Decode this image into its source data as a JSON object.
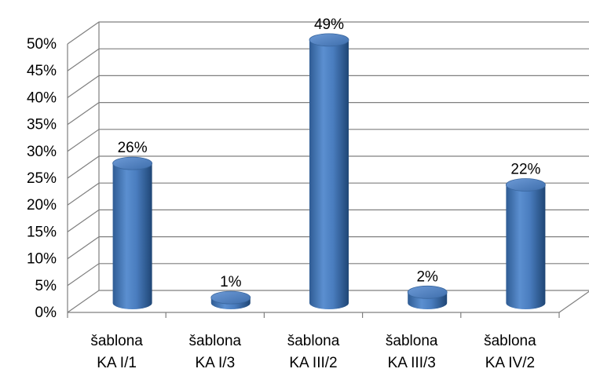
{
  "chart_data": {
    "type": "bar",
    "categories": [
      [
        "šablona",
        "KA I/1"
      ],
      [
        "šablona",
        "KA I/3"
      ],
      [
        "šablona",
        "KA III/2"
      ],
      [
        "šablona",
        "KA III/3"
      ],
      [
        "šablona",
        "KA IV/2"
      ]
    ],
    "values": [
      26,
      1,
      49,
      2,
      22
    ],
    "value_labels": [
      "26%",
      "1%",
      "49%",
      "2%",
      "22%"
    ],
    "ylim": [
      0,
      50
    ],
    "yticks": [
      0,
      5,
      10,
      15,
      20,
      25,
      30,
      35,
      40,
      45,
      50
    ],
    "ytick_labels": [
      "0%",
      "5%",
      "10%",
      "15%",
      "20%",
      "25%",
      "30%",
      "35%",
      "40%",
      "45%",
      "50%"
    ],
    "grid": true,
    "style": "3d-cylinder",
    "bar_color": "#4F81BD",
    "grid_color": "#7f7f7f"
  }
}
